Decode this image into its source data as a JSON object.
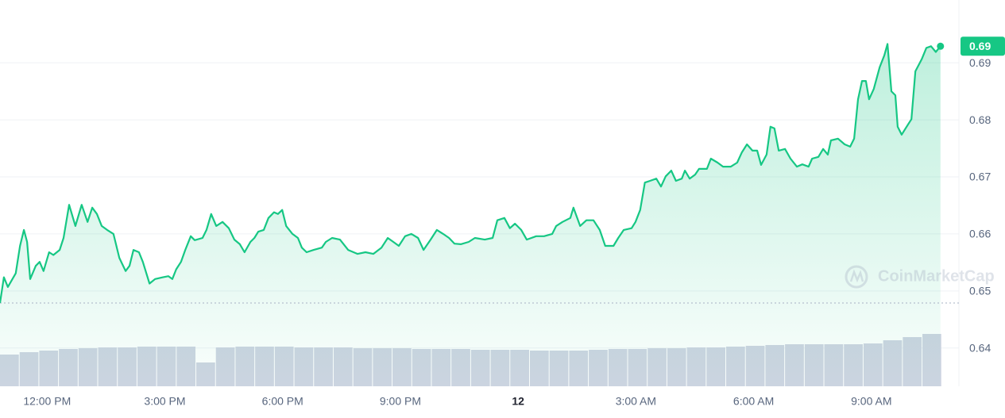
{
  "chart_data": {
    "type": "line",
    "color": "#16c784",
    "x": [
      10.8,
      10.9,
      11.0,
      11.2,
      11.31,
      11.41,
      11.49,
      11.57,
      11.71,
      11.81,
      11.91,
      12.05,
      12.16,
      12.32,
      12.42,
      12.56,
      12.72,
      12.88,
      13.03,
      13.15,
      13.27,
      13.39,
      13.53,
      13.69,
      13.84,
      14.0,
      14.1,
      14.2,
      14.34,
      14.44,
      14.61,
      14.75,
      14.95,
      15.09,
      15.19,
      15.29,
      15.41,
      15.52,
      15.66,
      15.76,
      15.96,
      16.06,
      16.18,
      16.31,
      16.47,
      16.63,
      16.77,
      16.91,
      17.03,
      17.18,
      17.28,
      17.38,
      17.52,
      17.64,
      17.78,
      17.88,
      17.99,
      18.09,
      18.25,
      18.39,
      18.49,
      18.61,
      18.79,
      19.0,
      19.1,
      19.26,
      19.46,
      19.67,
      19.91,
      20.11,
      20.31,
      20.52,
      20.68,
      20.82,
      20.96,
      21.12,
      21.28,
      21.45,
      21.59,
      21.77,
      21.93,
      22.09,
      22.24,
      22.38,
      22.54,
      22.74,
      22.9,
      23.15,
      23.35,
      23.47,
      23.65,
      23.79,
      23.92,
      24.08,
      24.22,
      24.46,
      24.66,
      24.87,
      24.97,
      25.13,
      25.33,
      25.41,
      25.58,
      25.74,
      25.92,
      26.08,
      26.22,
      26.43,
      26.55,
      26.69,
      26.89,
      26.99,
      27.11,
      27.23,
      27.36,
      27.52,
      27.64,
      27.76,
      27.9,
      28.02,
      28.17,
      28.25,
      28.37,
      28.51,
      28.61,
      28.81,
      28.91,
      29.08,
      29.22,
      29.42,
      29.58,
      29.7,
      29.83,
      29.97,
      30.09,
      30.19,
      30.33,
      30.43,
      30.53,
      30.64,
      30.8,
      30.94,
      31.1,
      31.24,
      31.4,
      31.49,
      31.65,
      31.77,
      31.89,
      31.97,
      32.15,
      32.32,
      32.46,
      32.56,
      32.66,
      32.76,
      32.86,
      32.94,
      33.06,
      33.21,
      33.33,
      33.41,
      33.51,
      33.61,
      33.67,
      33.77,
      33.87,
      34.02,
      34.12,
      34.28,
      34.4,
      34.52,
      34.64,
      34.76
    ],
    "values": [
      0.6479,
      0.6524,
      0.6507,
      0.6531,
      0.6579,
      0.6607,
      0.6586,
      0.6521,
      0.6544,
      0.6551,
      0.6535,
      0.6568,
      0.6563,
      0.6572,
      0.6593,
      0.6651,
      0.6614,
      0.6651,
      0.6621,
      0.6646,
      0.6635,
      0.6614,
      0.6607,
      0.66,
      0.6558,
      0.6535,
      0.6544,
      0.6572,
      0.6568,
      0.6551,
      0.6513,
      0.6521,
      0.6524,
      0.6526,
      0.6521,
      0.6538,
      0.6551,
      0.6572,
      0.6596,
      0.6589,
      0.6593,
      0.6607,
      0.6635,
      0.6614,
      0.6621,
      0.661,
      0.659,
      0.6582,
      0.6568,
      0.6586,
      0.6593,
      0.6604,
      0.6607,
      0.6628,
      0.6638,
      0.6635,
      0.6642,
      0.6614,
      0.66,
      0.6593,
      0.6576,
      0.6568,
      0.6572,
      0.6576,
      0.6586,
      0.6593,
      0.659,
      0.6572,
      0.6565,
      0.6568,
      0.6565,
      0.6576,
      0.6593,
      0.6586,
      0.6579,
      0.6596,
      0.66,
      0.6593,
      0.6572,
      0.659,
      0.6607,
      0.66,
      0.6593,
      0.6583,
      0.6582,
      0.6586,
      0.6593,
      0.659,
      0.6593,
      0.6624,
      0.6628,
      0.661,
      0.6618,
      0.6607,
      0.659,
      0.6596,
      0.6596,
      0.66,
      0.6614,
      0.6621,
      0.6628,
      0.6646,
      0.6614,
      0.6624,
      0.6624,
      0.6607,
      0.6579,
      0.6579,
      0.6593,
      0.6607,
      0.661,
      0.6621,
      0.6642,
      0.669,
      0.6693,
      0.6697,
      0.6683,
      0.6701,
      0.6711,
      0.6693,
      0.6697,
      0.6711,
      0.6697,
      0.6704,
      0.6714,
      0.6714,
      0.6732,
      0.6725,
      0.6718,
      0.6718,
      0.6725,
      0.6743,
      0.6757,
      0.6746,
      0.6746,
      0.6721,
      0.6739,
      0.6788,
      0.6785,
      0.6746,
      0.6749,
      0.6732,
      0.6718,
      0.6722,
      0.6718,
      0.6732,
      0.6735,
      0.6749,
      0.6739,
      0.6764,
      0.6767,
      0.6757,
      0.6753,
      0.6767,
      0.6836,
      0.6868,
      0.6868,
      0.6836,
      0.6854,
      0.6892,
      0.6913,
      0.6933,
      0.685,
      0.6843,
      0.6788,
      0.6774,
      0.6785,
      0.6801,
      0.6885,
      0.6906,
      0.6926,
      0.6929,
      0.6919,
      0.6929
    ],
    "last_price_label": "0.69",
    "xlim": [
      10.8,
      35.23
    ],
    "ylim": [
      0.6333,
      0.701
    ],
    "yticks": [
      0.64,
      0.65,
      0.66,
      0.67,
      0.68,
      0.69
    ],
    "xticks": [
      {
        "value": 12,
        "label": "12:00 PM"
      },
      {
        "value": 15,
        "label": "3:00 PM"
      },
      {
        "value": 18,
        "label": "6:00 PM"
      },
      {
        "value": 21,
        "label": "9:00 PM"
      },
      {
        "value": 24,
        "label": "12"
      },
      {
        "value": 27,
        "label": "3:00 AM"
      },
      {
        "value": 30,
        "label": "6:00 AM"
      },
      {
        "value": 33,
        "label": "9:00 AM"
      }
    ],
    "grid": true,
    "watermark": "CoinMarketCap",
    "volume": {
      "color": "#cfd4e2",
      "ylim": [
        0,
        100
      ],
      "bin_hours": 0.5,
      "values": [
        40,
        43,
        45,
        47,
        48,
        49,
        49,
        50,
        50,
        50,
        30,
        49,
        50,
        50,
        50,
        49,
        49,
        49,
        48,
        48,
        48,
        47,
        47,
        47,
        46,
        46,
        46,
        45,
        45,
        45,
        46,
        47,
        47,
        48,
        48,
        49,
        49,
        50,
        51,
        52,
        53,
        53,
        53,
        53,
        54,
        58,
        62,
        66
      ]
    }
  }
}
